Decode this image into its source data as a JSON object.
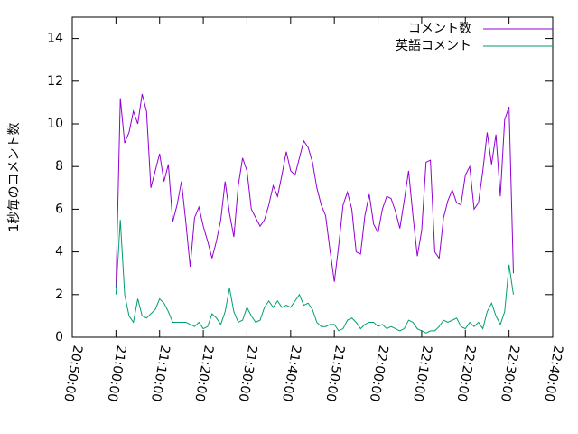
{
  "chart_data": {
    "type": "line",
    "ylabel": "1秒毎のコメント数",
    "x": [
      "21:00:00",
      "21:01:00",
      "21:02:00",
      "21:03:00",
      "21:04:00",
      "21:05:00",
      "21:06:00",
      "21:07:00",
      "21:08:00",
      "21:09:00",
      "21:10:00",
      "21:11:00",
      "21:12:00",
      "21:13:00",
      "21:14:00",
      "21:15:00",
      "21:16:00",
      "21:17:00",
      "21:18:00",
      "21:19:00",
      "21:20:00",
      "21:21:00",
      "21:22:00",
      "21:23:00",
      "21:24:00",
      "21:25:00",
      "21:26:00",
      "21:27:00",
      "21:28:00",
      "21:29:00",
      "21:30:00",
      "21:31:00",
      "21:32:00",
      "21:33:00",
      "21:34:00",
      "21:35:00",
      "21:36:00",
      "21:37:00",
      "21:38:00",
      "21:39:00",
      "21:40:00",
      "21:41:00",
      "21:42:00",
      "21:43:00",
      "21:44:00",
      "21:45:00",
      "21:46:00",
      "21:47:00",
      "21:48:00",
      "21:49:00",
      "21:50:00",
      "21:51:00",
      "21:52:00",
      "21:53:00",
      "21:54:00",
      "21:55:00",
      "21:56:00",
      "21:57:00",
      "21:58:00",
      "21:59:00",
      "22:00:00",
      "22:01:00",
      "22:02:00",
      "22:03:00",
      "22:04:00",
      "22:05:00",
      "22:06:00",
      "22:07:00",
      "22:08:00",
      "22:09:00",
      "22:10:00",
      "22:11:00",
      "22:12:00",
      "22:13:00",
      "22:14:00",
      "22:15:00",
      "22:16:00",
      "22:17:00",
      "22:18:00",
      "22:19:00",
      "22:20:00",
      "22:21:00",
      "22:22:00",
      "22:23:00",
      "22:24:00",
      "22:25:00",
      "22:26:00",
      "22:27:00",
      "22:28:00",
      "22:29:00",
      "22:30:00",
      "22:31:00"
    ],
    "series": [
      {
        "name": "コメント数",
        "color": "#9400d3",
        "values": [
          2.3,
          11.2,
          9.1,
          9.6,
          10.6,
          10.0,
          11.4,
          10.6,
          7.0,
          7.8,
          8.6,
          7.3,
          8.1,
          5.4,
          6.2,
          7.3,
          5.4,
          3.3,
          5.6,
          6.1,
          5.2,
          4.5,
          3.7,
          4.5,
          5.5,
          7.3,
          5.8,
          4.7,
          7.1,
          8.4,
          7.8,
          6.0,
          5.6,
          5.2,
          5.5,
          6.2,
          7.1,
          6.6,
          7.6,
          8.7,
          7.8,
          7.6,
          8.4,
          9.2,
          8.9,
          8.2,
          7.0,
          6.2,
          5.7,
          4.1,
          2.6,
          4.3,
          6.2,
          6.8,
          6.0,
          4.0,
          3.9,
          5.7,
          6.7,
          5.3,
          4.9,
          6.0,
          6.6,
          6.5,
          5.9,
          5.1,
          6.4,
          7.8,
          5.7,
          3.8,
          5.0,
          8.2,
          8.3,
          4.0,
          3.7,
          5.6,
          6.4,
          6.9,
          6.3,
          6.2,
          7.6,
          8.0,
          6.0,
          6.3,
          7.8,
          9.6,
          8.1,
          9.5,
          6.6,
          10.2,
          10.8,
          3.0
        ]
      },
      {
        "name": "英語コメント",
        "color": "#009e73",
        "values": [
          2.0,
          5.5,
          2.0,
          1.0,
          0.7,
          1.8,
          1.0,
          0.9,
          1.1,
          1.3,
          1.8,
          1.6,
          1.2,
          0.7,
          0.7,
          0.7,
          0.7,
          0.6,
          0.5,
          0.7,
          0.4,
          0.5,
          1.1,
          0.9,
          0.6,
          1.2,
          2.3,
          1.2,
          0.7,
          0.8,
          1.4,
          1.0,
          0.7,
          0.8,
          1.4,
          1.7,
          1.4,
          1.7,
          1.4,
          1.5,
          1.4,
          1.7,
          2.0,
          1.5,
          1.6,
          1.3,
          0.7,
          0.5,
          0.5,
          0.6,
          0.6,
          0.3,
          0.4,
          0.8,
          0.9,
          0.7,
          0.4,
          0.6,
          0.7,
          0.7,
          0.5,
          0.6,
          0.4,
          0.5,
          0.4,
          0.3,
          0.4,
          0.8,
          0.7,
          0.4,
          0.3,
          0.2,
          0.3,
          0.3,
          0.5,
          0.8,
          0.7,
          0.8,
          0.9,
          0.5,
          0.4,
          0.7,
          0.5,
          0.7,
          0.4,
          1.2,
          1.6,
          1.0,
          0.6,
          1.2,
          3.4,
          2.0
        ]
      }
    ],
    "xlim": [
      "20:50:00",
      "22:40:00"
    ],
    "xticks": [
      "20:50:00",
      "21:00:00",
      "21:10:00",
      "21:20:00",
      "21:30:00",
      "21:40:00",
      "21:50:00",
      "22:00:00",
      "22:10:00",
      "22:20:00",
      "22:30:00",
      "22:40:00"
    ],
    "ylim": [
      0,
      15
    ],
    "yticks": [
      0,
      2,
      4,
      6,
      8,
      10,
      12,
      14
    ],
    "legend": "top-right"
  }
}
